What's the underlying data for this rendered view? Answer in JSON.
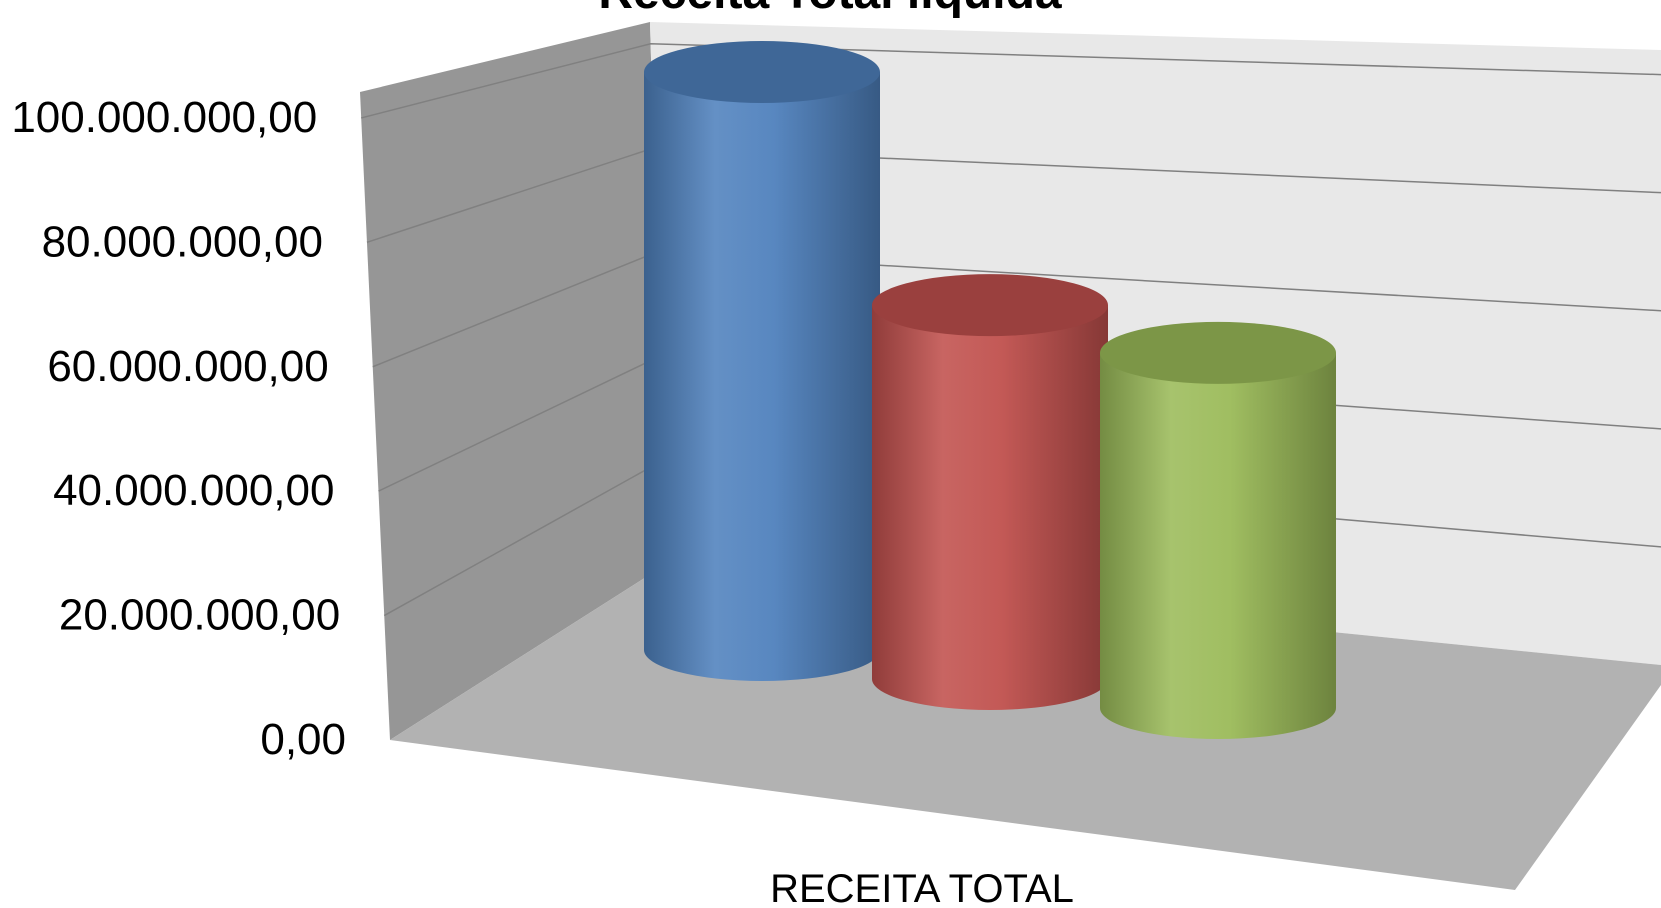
{
  "chart_data": {
    "type": "bar",
    "title": "Receita Total líquida",
    "categories": [
      "RECEITA TOTAL"
    ],
    "series": [
      {
        "values": [
          100000000
        ],
        "color": "#4F81BD"
      },
      {
        "values": [
          66000000
        ],
        "color": "#C0504D"
      },
      {
        "values": [
          64000000
        ],
        "color": "#9BBB59"
      }
    ],
    "y_ticks": [
      "0,00",
      "20.000.000,00",
      "40.000.000,00",
      "60.000.000,00",
      "80.000.000,00",
      "100.000.000,00"
    ],
    "ylim": [
      0,
      100000000
    ],
    "bar_shape": "cylinder",
    "grid": true,
    "legend": "none"
  }
}
